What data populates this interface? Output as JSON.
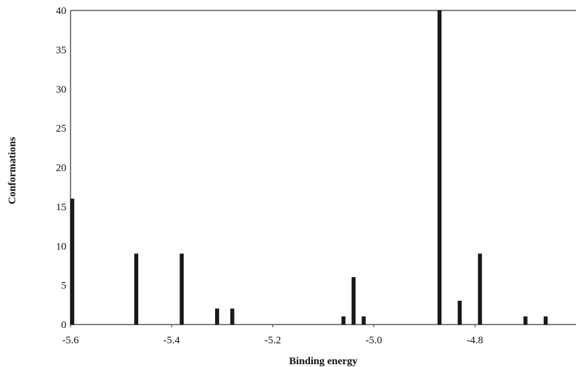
{
  "chart_data": {
    "type": "bar",
    "xlabel": "Binding energy",
    "ylabel": "Conformations",
    "xlim": [
      -5.6,
      -4.6
    ],
    "ylim": [
      0,
      40
    ],
    "x_ticks": [
      "-5.6",
      "-5.4",
      "-5.2",
      "-5.0",
      "-4.8"
    ],
    "y_ticks": [
      "0",
      "5",
      "10",
      "15",
      "20",
      "25",
      "30",
      "35",
      "40"
    ],
    "grid": false,
    "legend": "none",
    "bar_color": "#1a1a1a",
    "points": [
      {
        "x": -5.6,
        "y": 16
      },
      {
        "x": -5.47,
        "y": 9
      },
      {
        "x": -5.38,
        "y": 9
      },
      {
        "x": -5.31,
        "y": 2
      },
      {
        "x": -5.28,
        "y": 2
      },
      {
        "x": -5.06,
        "y": 1
      },
      {
        "x": -5.04,
        "y": 6
      },
      {
        "x": -5.02,
        "y": 1
      },
      {
        "x": -4.87,
        "y": 40
      },
      {
        "x": -4.83,
        "y": 3
      },
      {
        "x": -4.79,
        "y": 9
      },
      {
        "x": -4.7,
        "y": 1
      },
      {
        "x": -4.66,
        "y": 1
      }
    ]
  }
}
